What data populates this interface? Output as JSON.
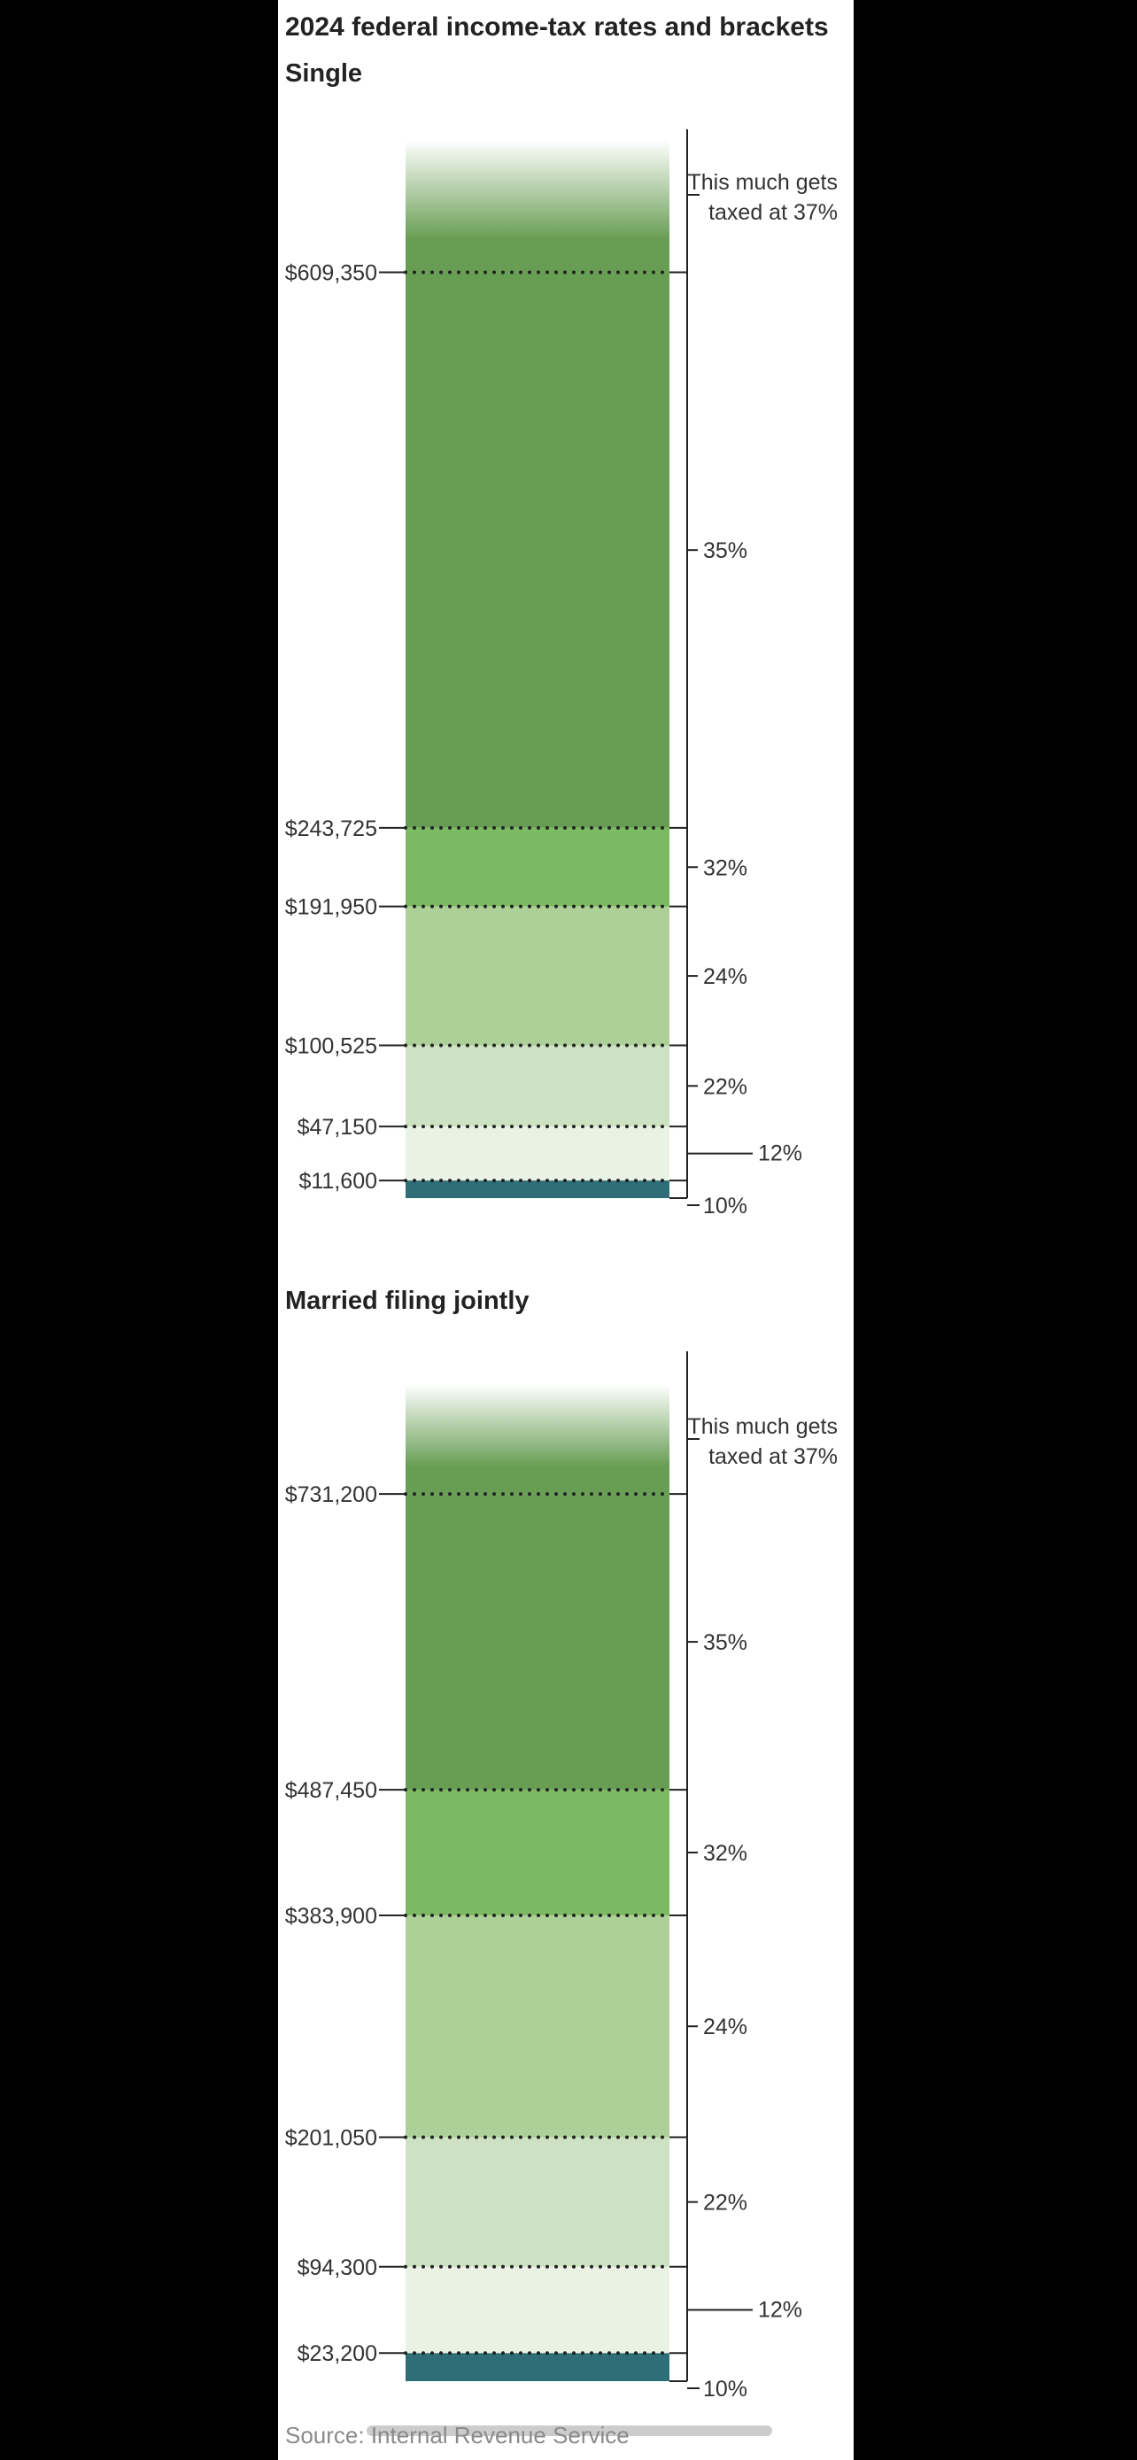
{
  "title": "2024 federal income-tax rates and brackets",
  "source": "Source: Internal Revenue Service",
  "colors": {
    "r10": "#2e6e77",
    "r12": "#eaf3e3",
    "r22": "#cde2c2",
    "r24": "#adcf98",
    "r32": "#7bba62",
    "r35": "#689e54",
    "r37": "#689e54",
    "scrollbar": "#cccccc"
  },
  "chart_data": [
    {
      "type": "bar",
      "title": "Single",
      "ylim": [
        0,
        700000
      ],
      "thresholds": [
        11600,
        47150,
        100525,
        191950,
        243725,
        609350
      ],
      "threshold_labels": [
        "$11,600",
        "$47,150",
        "$100,525",
        "$191,950",
        "$243,725",
        "$609,350"
      ],
      "brackets": [
        {
          "rate": "10%",
          "from": 0,
          "to": 11600
        },
        {
          "rate": "12%",
          "from": 11600,
          "to": 47150
        },
        {
          "rate": "22%",
          "from": 47150,
          "to": 100525
        },
        {
          "rate": "24%",
          "from": 100525,
          "to": 191950
        },
        {
          "rate": "32%",
          "from": 191950,
          "to": 243725
        },
        {
          "rate": "35%",
          "from": 243725,
          "to": 609350
        },
        {
          "rate": "This much gets taxed at 37%",
          "from": 609350,
          "to": null
        }
      ]
    },
    {
      "type": "bar",
      "title": "Married filing jointly",
      "ylim": [
        0,
        840000
      ],
      "thresholds": [
        23200,
        94300,
        201050,
        383900,
        487450,
        731200
      ],
      "threshold_labels": [
        "$23,200",
        "$94,300",
        "$201,050",
        "$383,900",
        "$487,450",
        "$731,200"
      ],
      "brackets": [
        {
          "rate": "10%",
          "from": 0,
          "to": 23200
        },
        {
          "rate": "12%",
          "from": 23200,
          "to": 94300
        },
        {
          "rate": "22%",
          "from": 94300,
          "to": 201050
        },
        {
          "rate": "24%",
          "from": 201050,
          "to": 383900
        },
        {
          "rate": "32%",
          "from": 383900,
          "to": 487450
        },
        {
          "rate": "35%",
          "from": 487450,
          "to": 731200
        },
        {
          "rate": "This much gets taxed at 37%",
          "from": 731200,
          "to": null
        }
      ]
    }
  ]
}
